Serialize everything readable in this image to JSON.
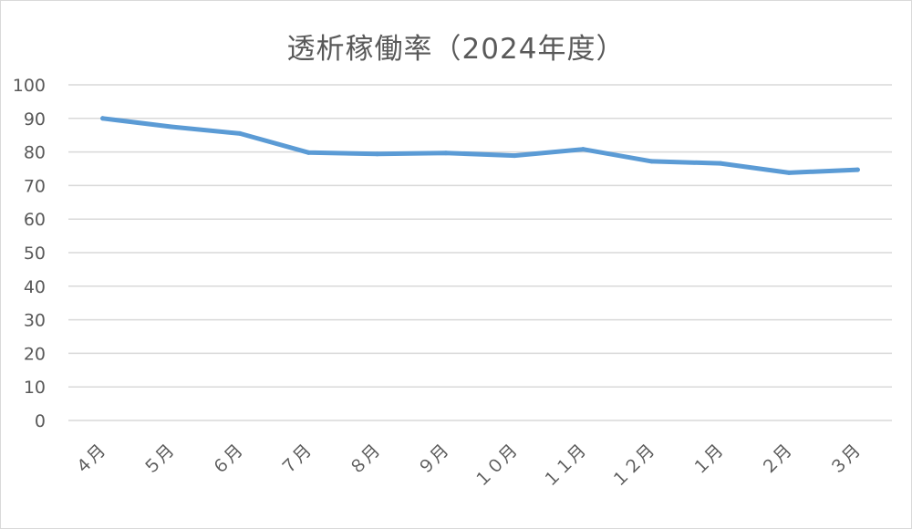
{
  "chart_data": {
    "type": "line",
    "title": "透析稼働率（2024年度）",
    "xlabel": "",
    "ylabel": "",
    "categories": [
      "４月",
      "５月",
      "６月",
      "７月",
      "８月",
      "９月",
      "１０月",
      "１１月",
      "１２月",
      "１月",
      "２月",
      "３月"
    ],
    "series": [
      {
        "values": [
          90.0,
          87.5,
          85.5,
          79.8,
          79.4,
          79.7,
          78.9,
          80.8,
          77.2,
          76.6,
          73.8,
          74.7
        ]
      }
    ],
    "ylim": [
      0,
      100
    ],
    "yticks": [
      "0",
      "10",
      "20",
      "30",
      "40",
      "50",
      "60",
      "70",
      "80",
      "90",
      "100"
    ],
    "grid": true,
    "legend": "none",
    "colors": {
      "line": "#5b9bd5",
      "grid": "#d9d9d9",
      "text": "#595959"
    }
  }
}
